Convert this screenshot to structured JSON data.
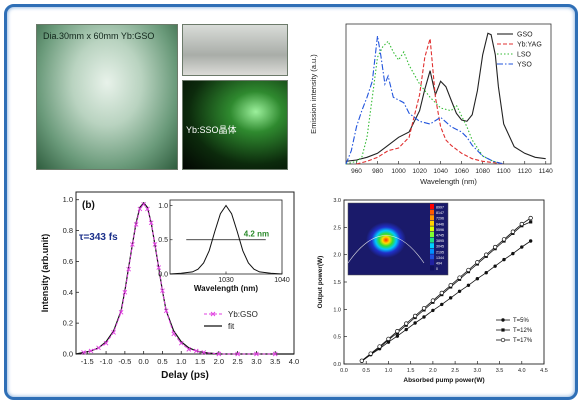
{
  "photos": {
    "crystal_label": "Dia.30mm x 60mm Yb:GSO",
    "glow_label": "Yb:SSO晶体"
  },
  "chart_data": [
    {
      "type": "line",
      "xlabel": "Wavelength (nm)",
      "ylabel": "Emission intensity (a.u.)",
      "xlim": [
        950,
        1145
      ],
      "xticks": [
        "960",
        "980",
        "1000",
        "1020",
        "1040",
        "1060",
        "1080",
        "1100",
        "1120",
        "1140"
      ],
      "legend_position": "top-right",
      "series": [
        {
          "name": "GSO",
          "color": "#222222",
          "dash": "solid",
          "x": [
            950,
            960,
            970,
            980,
            990,
            1000,
            1010,
            1020,
            1025,
            1030,
            1035,
            1040,
            1045,
            1050,
            1055,
            1060,
            1065,
            1070,
            1075,
            1080,
            1085,
            1088,
            1092,
            1095,
            1100,
            1110,
            1120,
            1130,
            1140
          ],
          "y": [
            0.02,
            0.03,
            0.05,
            0.08,
            0.14,
            0.2,
            0.24,
            0.4,
            0.56,
            0.7,
            0.52,
            0.62,
            0.58,
            0.48,
            0.38,
            0.33,
            0.32,
            0.37,
            0.55,
            0.82,
            0.98,
            0.97,
            0.82,
            0.58,
            0.3,
            0.13,
            0.08,
            0.05,
            0.04
          ]
        },
        {
          "name": "Yb:YAG",
          "color": "#e03030",
          "dash": "4,2",
          "x": [
            960,
            970,
            980,
            990,
            1000,
            1010,
            1015,
            1020,
            1025,
            1030,
            1035,
            1040,
            1045,
            1050,
            1060,
            1070,
            1080,
            1100
          ],
          "y": [
            0.0,
            0.02,
            0.05,
            0.1,
            0.12,
            0.2,
            0.36,
            0.52,
            0.8,
            0.94,
            0.5,
            0.28,
            0.18,
            0.14,
            0.08,
            0.04,
            0.02,
            0.0
          ]
        },
        {
          "name": "LSO",
          "color": "#33bb33",
          "dash": "1.5,2",
          "x": [
            950,
            960,
            965,
            970,
            975,
            980,
            985,
            990,
            995,
            1000,
            1005,
            1010,
            1020,
            1030,
            1040,
            1050,
            1055,
            1060,
            1065,
            1070,
            1080,
            1090,
            1100
          ],
          "y": [
            0.0,
            0.02,
            0.05,
            0.2,
            0.5,
            0.8,
            0.88,
            0.92,
            0.84,
            0.78,
            0.84,
            0.74,
            0.6,
            0.5,
            0.42,
            0.4,
            0.44,
            0.36,
            0.28,
            0.18,
            0.06,
            0.02,
            0.0
          ]
        },
        {
          "name": "YSO",
          "color": "#2255dd",
          "dash": "6,2,1.5,2",
          "x": [
            950,
            955,
            960,
            965,
            970,
            975,
            980,
            983,
            987,
            990,
            995,
            1000,
            1005,
            1010,
            1020,
            1030,
            1040,
            1050,
            1060,
            1065,
            1070,
            1080,
            1090,
            1100
          ],
          "y": [
            0.0,
            0.1,
            0.28,
            0.4,
            0.5,
            0.62,
            0.96,
            0.82,
            0.6,
            0.66,
            0.5,
            0.48,
            0.46,
            0.38,
            0.32,
            0.3,
            0.35,
            0.28,
            0.24,
            0.2,
            0.14,
            0.06,
            0.02,
            0.0
          ]
        }
      ]
    },
    {
      "type": "line",
      "panel_label": "(b)",
      "annotation": "τ=343 fs",
      "xlabel": "Delay (ps)",
      "ylabel": "Intensity (arb.unit)",
      "xlim": [
        -1.8,
        4.0
      ],
      "ylim": [
        0.0,
        1.0
      ],
      "xticks": [
        "-1.5",
        "-1.0",
        "-0.5",
        "0.0",
        "0.5",
        "1.0",
        "1.5",
        "2.0",
        "2.5",
        "3.0",
        "3.5",
        "4.0"
      ],
      "yticks": [
        "0.0",
        "0.2",
        "0.4",
        "0.6",
        "0.8",
        "1.0"
      ],
      "legend_position": "bottom-right",
      "series": [
        {
          "name": "Yb:GSO",
          "color": "#e040e0",
          "marker": "x",
          "x": [
            -1.6,
            -1.4,
            -1.2,
            -1.0,
            -0.8,
            -0.6,
            -0.5,
            -0.4,
            -0.3,
            -0.2,
            -0.1,
            0.0,
            0.1,
            0.2,
            0.3,
            0.4,
            0.5,
            0.6,
            0.8,
            1.0,
            1.2,
            1.4,
            1.6,
            2.0,
            2.5,
            3.0,
            3.5
          ],
          "y": [
            0.01,
            0.02,
            0.04,
            0.07,
            0.14,
            0.27,
            0.4,
            0.55,
            0.71,
            0.84,
            0.94,
            0.97,
            0.94,
            0.85,
            0.71,
            0.56,
            0.41,
            0.28,
            0.13,
            0.07,
            0.03,
            0.02,
            0.01,
            0.0,
            0.0,
            0.0,
            0.0
          ]
        },
        {
          "name": "fit",
          "color": "#111111",
          "marker": "none",
          "x": [
            -1.8,
            -1.6,
            -1.4,
            -1.2,
            -1.0,
            -0.8,
            -0.6,
            -0.5,
            -0.4,
            -0.3,
            -0.2,
            -0.1,
            0.0,
            0.1,
            0.2,
            0.3,
            0.4,
            0.5,
            0.6,
            0.8,
            1.0,
            1.2,
            1.4,
            1.6,
            2.0,
            2.5,
            3.0,
            3.5,
            4.0
          ],
          "y": [
            0.0,
            0.01,
            0.02,
            0.04,
            0.08,
            0.15,
            0.28,
            0.41,
            0.56,
            0.71,
            0.85,
            0.95,
            0.98,
            0.95,
            0.85,
            0.71,
            0.56,
            0.41,
            0.28,
            0.15,
            0.08,
            0.04,
            0.02,
            0.01,
            0.0,
            0.0,
            0.0,
            0.0,
            0.0
          ]
        }
      ],
      "inset": {
        "xlabel": "Wavelength (nm)",
        "xlim": [
          1020,
          1040
        ],
        "ylim": [
          0.0,
          1.0
        ],
        "xticks": [
          "1030",
          "1040"
        ],
        "yticks": [
          "0.0",
          "0.5",
          "1.0"
        ],
        "annotation": "4.2 nm",
        "color": "#111111",
        "x": [
          1020,
          1022,
          1024,
          1025,
          1026,
          1027,
          1028,
          1029,
          1030,
          1031,
          1032,
          1033,
          1034,
          1035,
          1036,
          1038,
          1040
        ],
        "y": [
          0.0,
          0.01,
          0.03,
          0.07,
          0.16,
          0.34,
          0.62,
          0.88,
          1.0,
          0.88,
          0.62,
          0.34,
          0.16,
          0.07,
          0.03,
          0.01,
          0.0
        ],
        "fwhm_y": 0.5,
        "fwhm_x": [
          1027.9,
          1032.1
        ]
      }
    },
    {
      "type": "line",
      "xlabel": "Absorbed pump power(W)",
      "ylabel": "Output power(W)",
      "xlim": [
        0.0,
        4.5
      ],
      "ylim": [
        0.0,
        3.0
      ],
      "xticks": [
        "0.0",
        "0.5",
        "1.0",
        "1.5",
        "2.0",
        "2.5",
        "3.0",
        "3.5",
        "4.0",
        "4.5"
      ],
      "yticks": [
        "0.0",
        "0.5",
        "1.0",
        "1.5",
        "2.0",
        "2.5",
        "3.0"
      ],
      "legend_position": "bottom-right",
      "series": [
        {
          "name": "T=5%",
          "color": "#111111",
          "marker": "filled-circle",
          "x": [
            0.4,
            0.6,
            0.8,
            1.0,
            1.2,
            1.4,
            1.6,
            1.8,
            2.0,
            2.2,
            2.4,
            2.6,
            2.8,
            3.0,
            3.2,
            3.4,
            3.6,
            3.8,
            4.0,
            4.2
          ],
          "y": [
            0.05,
            0.17,
            0.28,
            0.4,
            0.51,
            0.63,
            0.75,
            0.86,
            0.98,
            1.09,
            1.21,
            1.33,
            1.44,
            1.56,
            1.67,
            1.79,
            1.91,
            2.02,
            2.14,
            2.25
          ]
        },
        {
          "name": "T=12%",
          "color": "#111111",
          "marker": "filled-square",
          "x": [
            0.4,
            0.6,
            0.8,
            1.0,
            1.2,
            1.4,
            1.6,
            1.8,
            2.0,
            2.2,
            2.4,
            2.6,
            2.8,
            3.0,
            3.2,
            3.4,
            3.6,
            3.8,
            4.0,
            4.2
          ],
          "y": [
            0.06,
            0.18,
            0.3,
            0.44,
            0.57,
            0.71,
            0.85,
            0.99,
            1.13,
            1.27,
            1.41,
            1.55,
            1.69,
            1.83,
            1.97,
            2.11,
            2.25,
            2.39,
            2.53,
            2.6
          ]
        },
        {
          "name": "T=17%",
          "color": "#111111",
          "marker": "open-circle",
          "x": [
            0.4,
            0.6,
            0.8,
            1.0,
            1.2,
            1.4,
            1.6,
            1.8,
            2.0,
            2.2,
            2.4,
            2.6,
            2.8,
            3.0,
            3.2,
            3.4,
            3.6,
            3.8,
            4.0,
            4.2
          ],
          "y": [
            0.06,
            0.19,
            0.32,
            0.46,
            0.6,
            0.74,
            0.88,
            1.02,
            1.16,
            1.3,
            1.44,
            1.58,
            1.72,
            1.86,
            2.0,
            2.14,
            2.28,
            2.42,
            2.56,
            2.67
          ]
        }
      ],
      "inset_colorbar_ticks": [
        "8997",
        "8147",
        "7296",
        "6446",
        "5596",
        "4745",
        "3895",
        "3045",
        "2195",
        "1344",
        "494",
        "0"
      ]
    }
  ]
}
